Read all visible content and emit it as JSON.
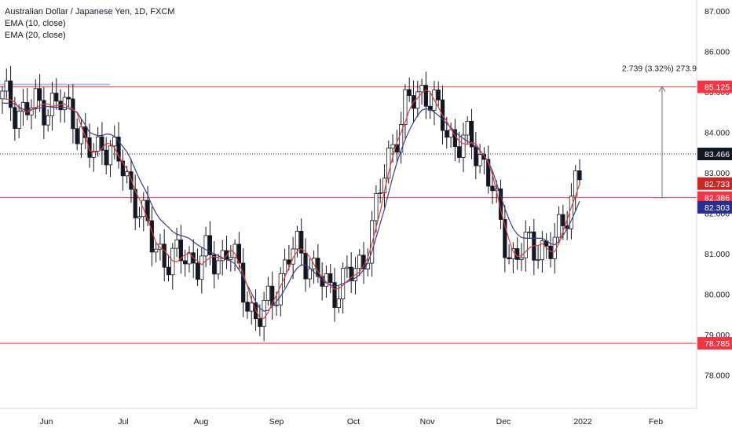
{
  "legend": {
    "title": "Australian Dollar / Japanese Yen, 1D, FXCM",
    "ema_fast": "EMA (10, close)",
    "ema_slow": "EMA (20, close)"
  },
  "colors": {
    "up_candle": "#ffffff",
    "down_candle": "#131722",
    "wick": "#131722",
    "ema_fast": "#e0403a",
    "ema_slow": "#3a3f8f",
    "level_line": "#f23645",
    "last_price_badge": "#131722",
    "grid_axis": "#d1d4dc"
  },
  "price_axis": {
    "labels": [
      "87.000",
      "86.000",
      "85.000",
      "84.000",
      "83.000",
      "82.000",
      "81.000",
      "80.000",
      "79.000",
      "78.000"
    ]
  },
  "time_axis": {
    "labels": [
      "Jun",
      "Jul",
      "Aug",
      "Sep",
      "Oct",
      "Nov",
      "Dec",
      "2022",
      "Feb"
    ]
  },
  "badges": [
    {
      "label": "85.125",
      "color": "#f23645"
    },
    {
      "label": "83.466",
      "color": "#131722"
    },
    {
      "label": "82.733",
      "color": "#c62828"
    },
    {
      "label": "82.386",
      "color": "#f23645"
    },
    {
      "label": "82.303",
      "color": "#2a2e8c"
    },
    {
      "label": "78.785",
      "color": "#f23645"
    }
  ],
  "measure": {
    "label": "2.739 (3.32%) 273.9"
  },
  "chart_data": {
    "type": "candlestick",
    "title": "Australian Dollar / Japanese Yen, 1D, FXCM",
    "ylim": [
      77.2,
      87.2
    ],
    "levels": [
      85.125,
      82.386,
      78.785
    ],
    "last_price": 83.466,
    "price_range_measure": {
      "from": 82.386,
      "to": 85.125,
      "change": 2.739,
      "percent": 3.32,
      "pips": 273.9
    },
    "series": [
      {
        "name": "EMA (10, close)",
        "values": [
          84.83,
          84.82,
          84.8,
          84.75,
          84.6,
          84.53,
          84.5,
          84.55,
          84.62,
          84.66,
          84.7,
          84.7,
          84.64,
          84.66,
          84.68,
          84.7,
          84.62,
          84.57,
          84.48,
          84.15,
          83.9,
          83.55,
          83.5,
          83.52,
          83.6,
          83.73,
          83.72,
          83.62,
          83.42,
          83.25,
          83.1,
          82.85,
          82.55,
          82.35,
          82.1,
          81.85,
          81.55,
          81.28,
          81.15,
          81.08,
          80.95,
          80.82,
          80.8,
          80.88,
          80.98,
          81.01,
          80.9,
          80.82,
          80.73,
          80.83,
          80.9,
          80.93,
          80.9,
          80.87,
          80.95,
          81.1,
          81.0,
          80.75,
          80.5,
          80.2,
          79.85,
          79.6,
          79.42,
          79.4,
          79.55,
          79.78,
          79.98,
          80.2,
          80.42,
          80.65,
          80.9,
          81.05,
          81.12,
          81.05,
          80.92,
          80.74,
          80.56,
          80.42,
          80.3,
          80.2,
          80.12,
          80.14,
          80.22,
          80.32,
          80.42,
          80.48,
          80.55,
          80.7,
          80.9,
          81.25,
          81.65,
          82.05,
          82.55,
          83.0,
          83.4,
          83.75,
          84.0,
          84.25,
          84.55,
          84.75,
          84.85,
          84.97,
          85.05,
          85.0,
          84.8,
          84.62,
          84.42,
          84.28,
          84.08,
          83.92,
          83.78,
          83.72,
          83.7,
          83.75,
          83.72,
          83.56,
          83.42,
          83.25,
          82.95,
          82.55,
          82.08,
          81.7,
          81.35,
          81.05,
          80.93,
          80.95,
          81.05,
          81.15,
          81.2,
          81.2,
          81.25,
          81.15,
          81.05,
          81.05,
          81.25,
          81.55,
          81.85,
          82.15,
          82.42,
          82.73
        ]
      },
      {
        "name": "EMA (20, close)",
        "values": [
          84.72,
          84.72,
          84.72,
          84.7,
          84.63,
          84.57,
          84.55,
          84.56,
          84.58,
          84.6,
          84.63,
          84.64,
          84.62,
          84.62,
          84.62,
          84.62,
          84.58,
          84.55,
          84.5,
          84.33,
          84.18,
          84.0,
          83.95,
          83.92,
          83.92,
          83.96,
          83.95,
          83.9,
          83.78,
          83.65,
          83.52,
          83.32,
          83.08,
          82.85,
          82.65,
          82.45,
          82.2,
          82.0,
          81.85,
          81.75,
          81.65,
          81.55,
          81.48,
          81.45,
          81.42,
          81.38,
          81.3,
          81.22,
          81.16,
          81.1,
          81.05,
          81.0,
          80.95,
          80.9,
          80.85,
          80.82,
          80.75,
          80.6,
          80.42,
          80.22,
          80.02,
          79.82,
          79.65,
          79.58,
          79.6,
          79.7,
          79.82,
          79.95,
          80.12,
          80.3,
          80.5,
          80.65,
          80.72,
          80.72,
          80.65,
          80.55,
          80.45,
          80.35,
          80.28,
          80.23,
          80.2,
          80.22,
          80.26,
          80.3,
          80.35,
          80.4,
          80.48,
          80.6,
          80.78,
          81.05,
          81.4,
          81.75,
          82.1,
          82.5,
          82.9,
          83.25,
          83.55,
          83.82,
          84.05,
          84.25,
          84.42,
          84.55,
          84.58,
          84.57,
          84.5,
          84.42,
          84.32,
          84.22,
          84.12,
          84.02,
          83.92,
          83.85,
          83.78,
          83.72,
          83.65,
          83.55,
          83.42,
          83.28,
          83.05,
          82.75,
          82.42,
          82.12,
          81.85,
          81.62,
          81.48,
          81.4,
          81.38,
          81.38,
          81.38,
          81.38,
          81.38,
          81.32,
          81.25,
          81.22,
          81.3,
          81.45,
          81.62,
          81.82,
          82.05,
          82.3
        ]
      }
    ]
  }
}
